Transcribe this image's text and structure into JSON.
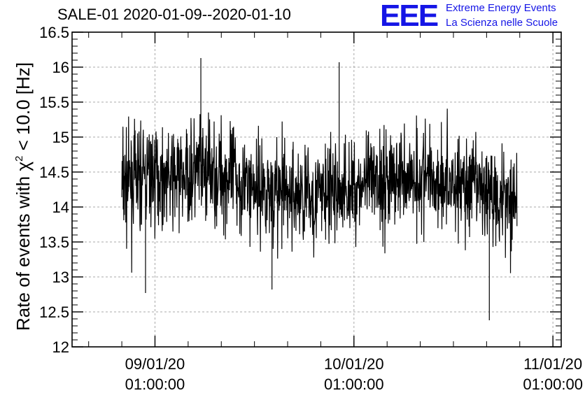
{
  "header": {
    "title": "SALE-01 2020-01-09--2020-01-10",
    "logo": "EEE",
    "logo_line1": "Extreme Energy Events",
    "logo_line2": "La Scienza nelle Scuole"
  },
  "chart_data": {
    "type": "line",
    "title": "SALE-01 2020-01-09--2020-01-10",
    "xlabel": "",
    "ylabel": "Rate of events with χ² < 10.0 [Hz]",
    "ylim": [
      12,
      16.5
    ],
    "yticks": [
      12,
      12.5,
      13,
      13.5,
      14,
      14.5,
      15,
      15.5,
      16,
      16.5
    ],
    "ytick_labels": [
      "12",
      "12.5",
      "13",
      "13.5",
      "14",
      "14.5",
      "15",
      "15.5",
      "16",
      "16.5"
    ],
    "xlim": [
      "2020-01-08 15:00",
      "2020-01-11 02:00"
    ],
    "xticks": [
      {
        "date": [
          "09/01/20",
          "01:00:00"
        ],
        "x": "2020-01-09 01:00"
      },
      {
        "date": [
          "10/01/20",
          "01:00:00"
        ],
        "x": "2020-01-10 01:00"
      },
      {
        "date": [
          "11/01/20",
          "01:00:00"
        ],
        "x": "2020-01-11 01:00"
      }
    ],
    "grid": true,
    "color": "#000000",
    "series": [
      {
        "x_start": "2020-01-08 21:00",
        "x_end": "2020-01-10 20:40",
        "mean": [
          14.3,
          14.45,
          14.4,
          14.5,
          14.45,
          14.3,
          14.2,
          14.15,
          14.2,
          14.3,
          14.4,
          14.45,
          14.4,
          14.3,
          14.2,
          14.15
        ],
        "max": 16.13,
        "min": 12.38,
        "typical_range": [
          13.3,
          15.3
        ]
      }
    ]
  }
}
